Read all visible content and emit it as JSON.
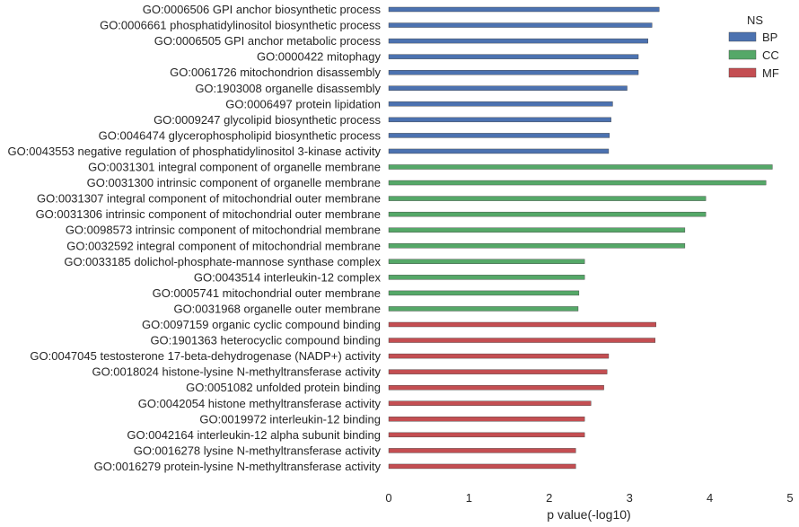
{
  "chart_data": {
    "type": "bar",
    "orientation": "horizontal",
    "xlabel": "p value(-log10)",
    "xlim": [
      0,
      5
    ],
    "xticks": [
      "0",
      "1",
      "2",
      "3",
      "4",
      "5"
    ],
    "grid": false,
    "legend": {
      "title": "NS",
      "placement": "top-right",
      "entries": [
        {
          "name": "BP",
          "color": "#4c72b0"
        },
        {
          "name": "CC",
          "color": "#55a868"
        },
        {
          "name": "MF",
          "color": "#c44e52"
        }
      ]
    },
    "bars": [
      {
        "label": "GO:0006506 GPI anchor biosynthetic process",
        "value": 3.37,
        "ns": "BP"
      },
      {
        "label": "GO:0006661 phosphatidylinositol biosynthetic process",
        "value": 3.28,
        "ns": "BP"
      },
      {
        "label": "GO:0006505 GPI anchor metabolic process",
        "value": 3.23,
        "ns": "BP"
      },
      {
        "label": "GO:0000422 mitophagy",
        "value": 3.11,
        "ns": "BP"
      },
      {
        "label": "GO:0061726 mitochondrion disassembly",
        "value": 3.11,
        "ns": "BP"
      },
      {
        "label": "GO:1903008 organelle disassembly",
        "value": 2.97,
        "ns": "BP"
      },
      {
        "label": "GO:0006497 protein lipidation",
        "value": 2.79,
        "ns": "BP"
      },
      {
        "label": "GO:0009247 glycolipid biosynthetic process",
        "value": 2.77,
        "ns": "BP"
      },
      {
        "label": "GO:0046474 glycerophospholipid biosynthetic process",
        "value": 2.75,
        "ns": "BP"
      },
      {
        "label": "GO:0043553 negative regulation of phosphatidylinositol 3-kinase activity",
        "value": 2.74,
        "ns": "BP"
      },
      {
        "label": "GO:0031301 integral component of organelle membrane",
        "value": 4.78,
        "ns": "CC"
      },
      {
        "label": "GO:0031300 intrinsic component of organelle membrane",
        "value": 4.7,
        "ns": "CC"
      },
      {
        "label": "GO:0031307 integral component of mitochondrial outer membrane",
        "value": 3.95,
        "ns": "CC"
      },
      {
        "label": "GO:0031306 intrinsic component of mitochondrial outer membrane",
        "value": 3.95,
        "ns": "CC"
      },
      {
        "label": "GO:0098573 intrinsic component of mitochondrial membrane",
        "value": 3.69,
        "ns": "CC"
      },
      {
        "label": "GO:0032592 integral component of mitochondrial membrane",
        "value": 3.69,
        "ns": "CC"
      },
      {
        "label": "GO:0033185 dolichol-phosphate-mannose synthase complex",
        "value": 2.44,
        "ns": "CC"
      },
      {
        "label": "GO:0043514 interleukin-12 complex",
        "value": 2.44,
        "ns": "CC"
      },
      {
        "label": "GO:0005741 mitochondrial outer membrane",
        "value": 2.37,
        "ns": "CC"
      },
      {
        "label": "GO:0031968 organelle outer membrane",
        "value": 2.36,
        "ns": "CC"
      },
      {
        "label": "GO:0097159 organic cyclic compound binding",
        "value": 3.33,
        "ns": "MF"
      },
      {
        "label": "GO:1901363 heterocyclic compound binding",
        "value": 3.32,
        "ns": "MF"
      },
      {
        "label": "GO:0047045 testosterone 17-beta-dehydrogenase (NADP+) activity",
        "value": 2.74,
        "ns": "MF"
      },
      {
        "label": "GO:0018024 histone-lysine N-methyltransferase activity",
        "value": 2.72,
        "ns": "MF"
      },
      {
        "label": "GO:0051082 unfolded protein binding",
        "value": 2.68,
        "ns": "MF"
      },
      {
        "label": "GO:0042054 histone methyltransferase activity",
        "value": 2.52,
        "ns": "MF"
      },
      {
        "label": "GO:0019972 interleukin-12 binding",
        "value": 2.44,
        "ns": "MF"
      },
      {
        "label": "GO:0042164 interleukin-12 alpha subunit binding",
        "value": 2.44,
        "ns": "MF"
      },
      {
        "label": "GO:0016278 lysine N-methyltransferase activity",
        "value": 2.33,
        "ns": "MF"
      },
      {
        "label": "GO:0016279 protein-lysine N-methyltransferase activity",
        "value": 2.33,
        "ns": "MF"
      }
    ]
  }
}
